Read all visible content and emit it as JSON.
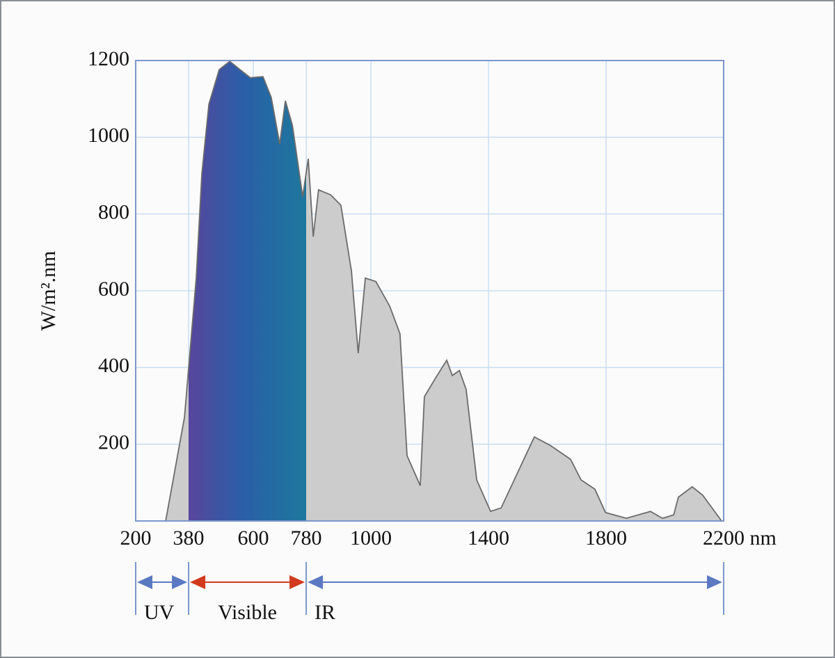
{
  "chart_data": {
    "type": "area",
    "y_label": "W/m².nm",
    "x": [
      302,
      366,
      406,
      425,
      449,
      484,
      520,
      555,
      590,
      633,
      661,
      690,
      709,
      733,
      768,
      787,
      804,
      822,
      863,
      898,
      934,
      957,
      981,
      1017,
      1064,
      1099,
      1123,
      1168,
      1182,
      1218,
      1258,
      1277,
      1301,
      1324,
      1360,
      1407,
      1443,
      1556,
      1608,
      1679,
      1715,
      1762,
      1798,
      1869,
      1951,
      1992,
      2030,
      2046,
      2093,
      2129,
      2193
    ],
    "values": [
      0,
      270,
      633,
      905,
      1086,
      1176,
      1198,
      1176,
      1155,
      1158,
      1104,
      982,
      1095,
      1031,
      845,
      944,
      741,
      863,
      850,
      823,
      651,
      437,
      633,
      624,
      560,
      488,
      170,
      92,
      324,
      370,
      419,
      379,
      392,
      343,
      107,
      25,
      34,
      219,
      198,
      161,
      107,
      83,
      22,
      7,
      25,
      7,
      16,
      62,
      89,
      67,
      0
    ],
    "color": "#cccccc",
    "xlim": [
      200,
      2200
    ],
    "ylim": [
      0,
      1200
    ],
    "xticks": [
      200,
      380,
      600,
      780,
      1000,
      1400,
      1800,
      {
        "value": 2200,
        "label": "2200 nm"
      }
    ],
    "yticks": [
      200,
      400,
      600,
      800,
      1000,
      1200
    ],
    "grid": true,
    "bands": [
      {
        "label": "UV",
        "from": 200,
        "to": 380,
        "color": "#5b79c2"
      },
      {
        "label": "Visible",
        "from": 380,
        "to": 780,
        "color": "#d23a1e"
      },
      {
        "label": "IR",
        "from": 780,
        "to": 2200,
        "color": "#5b79c2"
      }
    ]
  }
}
